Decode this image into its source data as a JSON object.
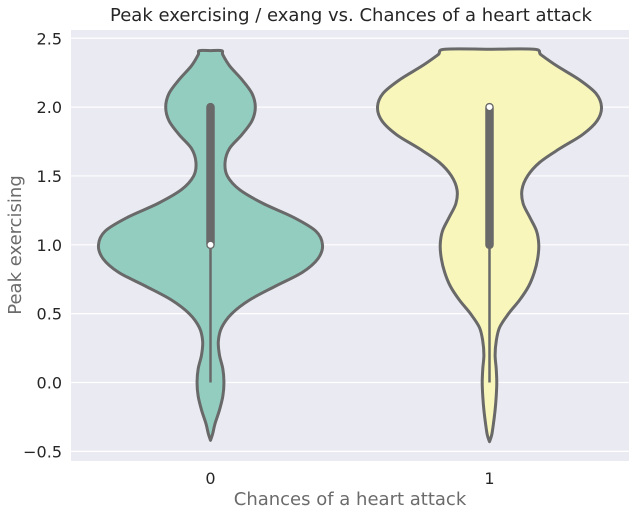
{
  "chart_data": {
    "type": "violin",
    "title": "Peak exercising / exang vs. Chances of a heart attack",
    "xlabel": "Chances of a heart attack",
    "ylabel": "Peak exercising",
    "categories": [
      "0",
      "1"
    ],
    "ylim": [
      -0.57,
      2.56
    ],
    "yticks": [
      -0.5,
      0.0,
      0.5,
      1.0,
      1.5,
      2.0,
      2.5
    ],
    "ytick_labels": [
      "−0.5",
      "0.0",
      "0.5",
      "1.0",
      "1.5",
      "2.0",
      "2.5"
    ],
    "grid": true,
    "background": "#eaeaf2",
    "colors": {
      "outline": "#696969",
      "box": "#696969",
      "median": "#ffffff"
    },
    "violins": [
      {
        "category": "0",
        "fill": "#93cdc0",
        "range": [
          -0.42,
          2.41
        ],
        "box": {
          "min": 0.0,
          "q1": 1.0,
          "median": 1.0,
          "q3": 2.0,
          "max": 2.0
        },
        "density_profile": [
          [
            -0.42,
            0.0
          ],
          [
            -0.37,
            0.02
          ],
          [
            -0.3,
            0.04
          ],
          [
            -0.2,
            0.08
          ],
          [
            -0.1,
            0.11
          ],
          [
            0.0,
            0.12
          ],
          [
            0.1,
            0.11
          ],
          [
            0.2,
            0.08
          ],
          [
            0.3,
            0.07
          ],
          [
            0.4,
            0.1
          ],
          [
            0.5,
            0.19
          ],
          [
            0.6,
            0.35
          ],
          [
            0.7,
            0.58
          ],
          [
            0.8,
            0.82
          ],
          [
            0.9,
            0.96
          ],
          [
            1.0,
            1.0
          ],
          [
            1.1,
            0.94
          ],
          [
            1.2,
            0.74
          ],
          [
            1.3,
            0.47
          ],
          [
            1.4,
            0.26
          ],
          [
            1.5,
            0.15
          ],
          [
            1.6,
            0.13
          ],
          [
            1.7,
            0.17
          ],
          [
            1.8,
            0.28
          ],
          [
            1.9,
            0.37
          ],
          [
            2.0,
            0.4
          ],
          [
            2.1,
            0.37
          ],
          [
            2.2,
            0.28
          ],
          [
            2.3,
            0.17
          ],
          [
            2.38,
            0.11
          ],
          [
            2.41,
            0.1
          ],
          [
            2.41,
            0.0
          ]
        ]
      },
      {
        "category": "1",
        "fill": "#f8f6bb",
        "range": [
          -0.43,
          2.42
        ],
        "box": {
          "min": 0.0,
          "q1": 1.0,
          "median": 2.0,
          "q3": 2.0,
          "max": 2.0
        },
        "density_profile": [
          [
            -0.43,
            0.0
          ],
          [
            -0.38,
            0.02
          ],
          [
            -0.3,
            0.035
          ],
          [
            -0.2,
            0.05
          ],
          [
            -0.1,
            0.06
          ],
          [
            0.0,
            0.065
          ],
          [
            0.1,
            0.06
          ],
          [
            0.2,
            0.05
          ],
          [
            0.3,
            0.06
          ],
          [
            0.4,
            0.09
          ],
          [
            0.5,
            0.17
          ],
          [
            0.6,
            0.27
          ],
          [
            0.7,
            0.35
          ],
          [
            0.8,
            0.4
          ],
          [
            0.9,
            0.43
          ],
          [
            1.0,
            0.44
          ],
          [
            1.1,
            0.42
          ],
          [
            1.2,
            0.36
          ],
          [
            1.3,
            0.3
          ],
          [
            1.4,
            0.29
          ],
          [
            1.5,
            0.34
          ],
          [
            1.6,
            0.45
          ],
          [
            1.7,
            0.63
          ],
          [
            1.8,
            0.83
          ],
          [
            1.9,
            0.96
          ],
          [
            2.0,
            1.0
          ],
          [
            2.1,
            0.95
          ],
          [
            2.2,
            0.8
          ],
          [
            2.3,
            0.6
          ],
          [
            2.38,
            0.46
          ],
          [
            2.42,
            0.4
          ],
          [
            2.42,
            0.0
          ]
        ]
      }
    ]
  }
}
